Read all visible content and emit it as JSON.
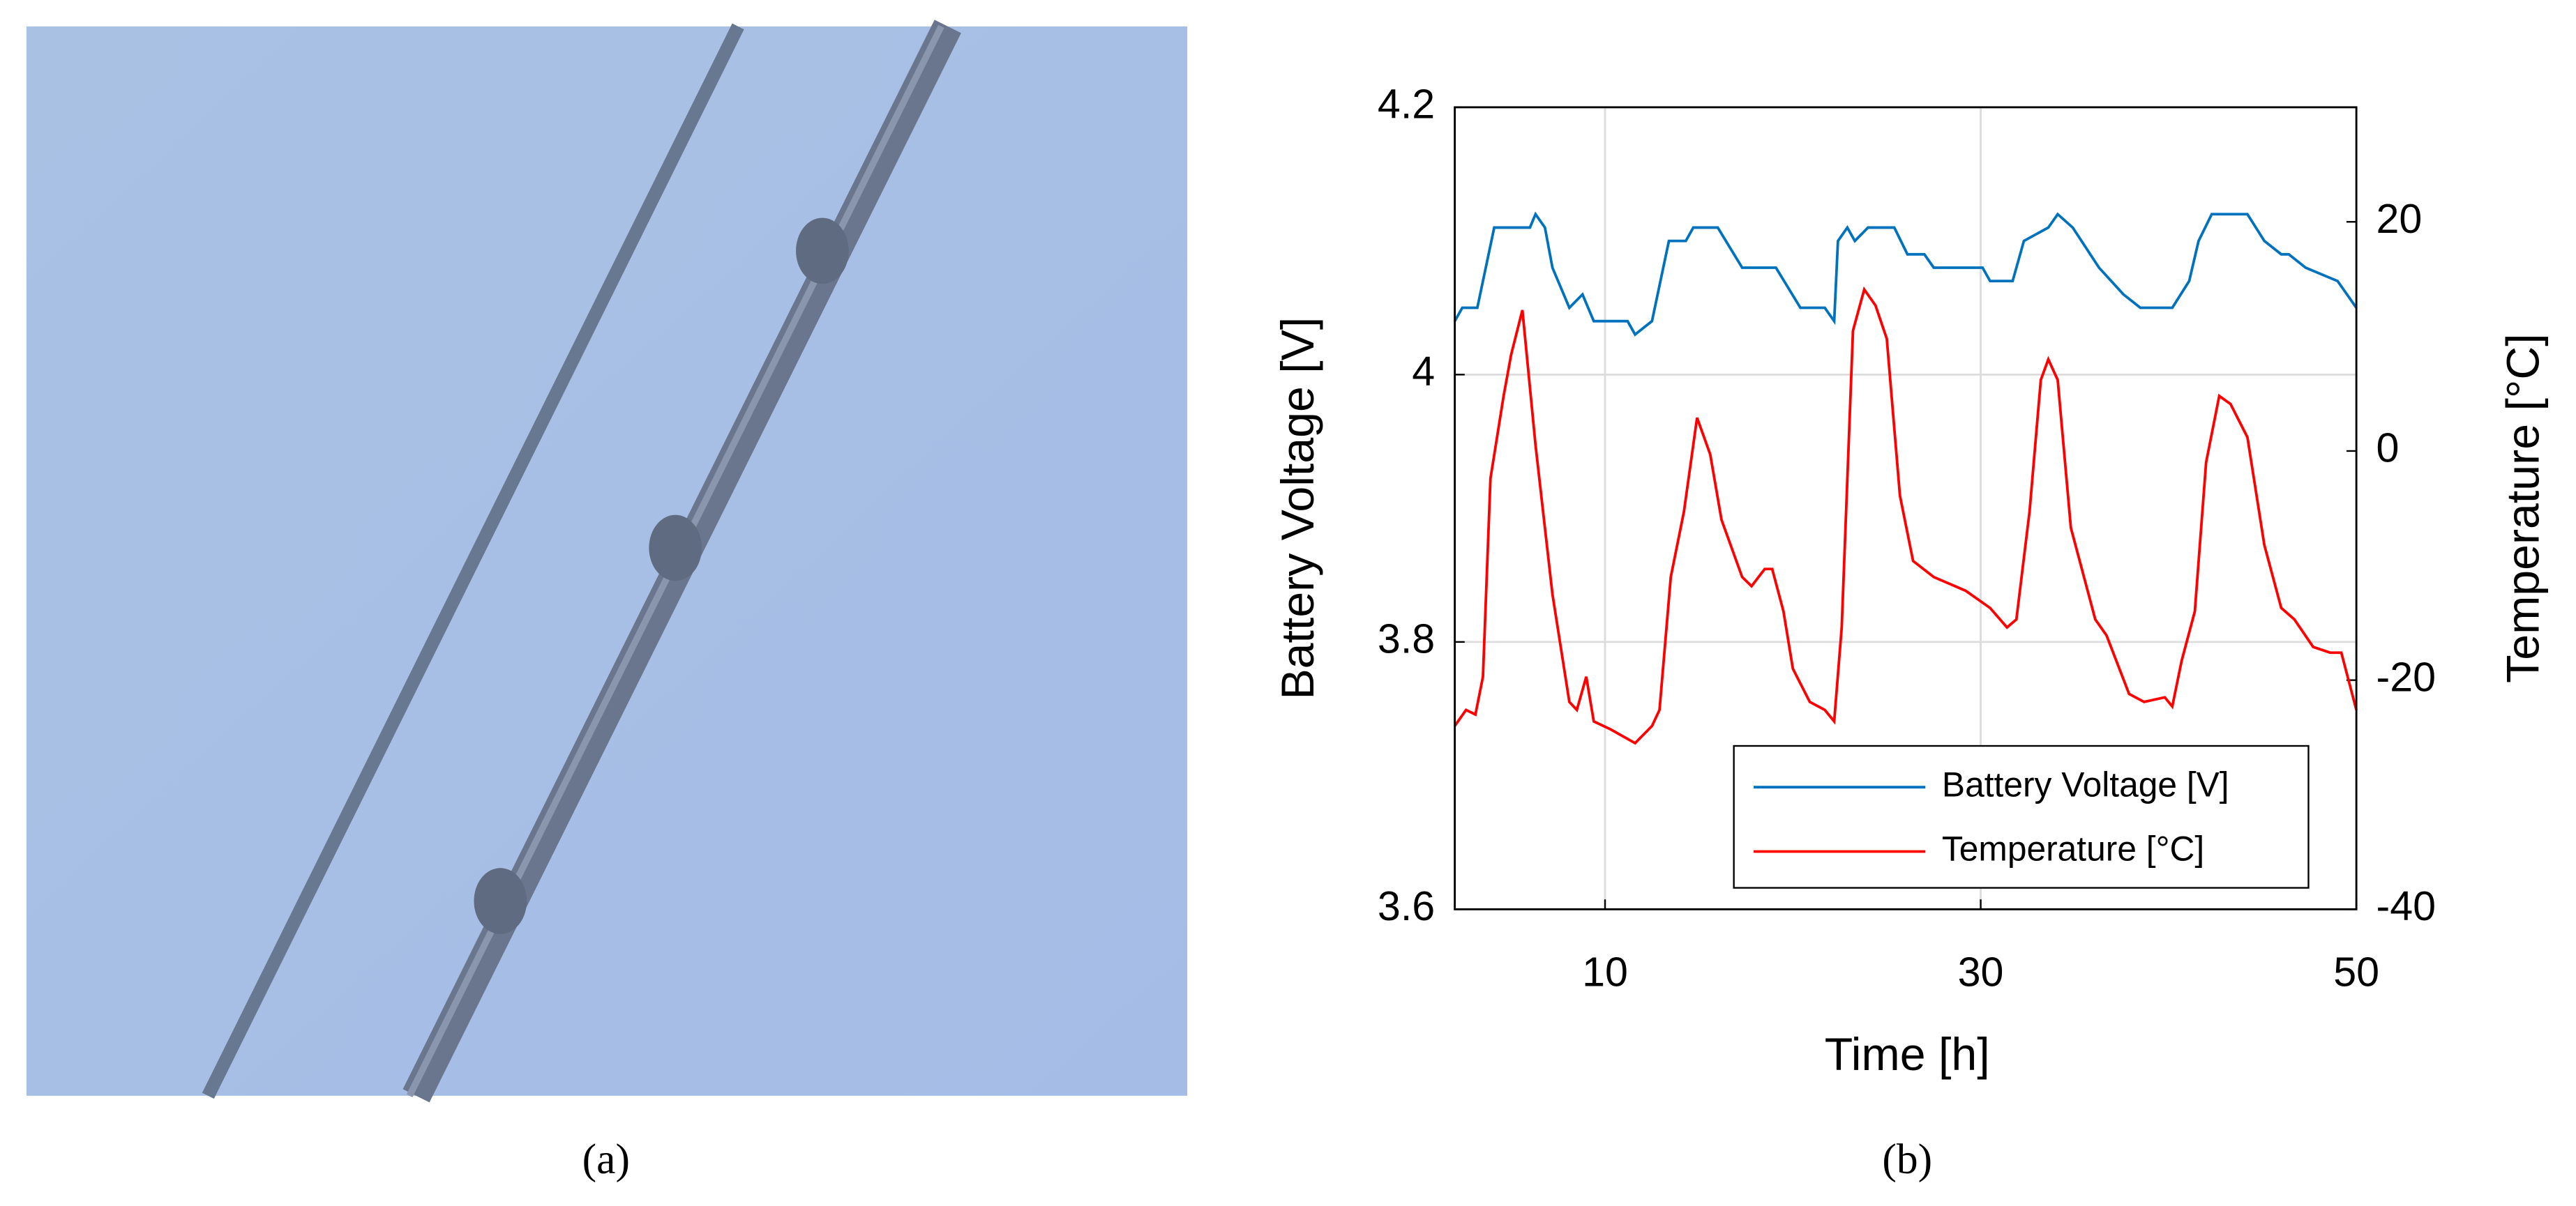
{
  "panels": [
    "(a)",
    "(b)"
  ],
  "chart_data": {
    "type": "line",
    "xlabel": "Time [h]",
    "ylabel": "Battery Voltage [V]",
    "y2label": "Temperature [°C]",
    "xlim": [
      2,
      50
    ],
    "xticks": [
      10,
      30,
      50
    ],
    "ylim": [
      3.6,
      4.2
    ],
    "yticks": [
      3.6,
      3.8,
      4,
      4.2
    ],
    "y2lim": [
      -40,
      30
    ],
    "y2ticks": [
      -40,
      -20,
      0,
      20
    ],
    "grid": true,
    "legend": "lower right",
    "series": [
      {
        "name": "Battery Voltage [V]",
        "color": "#0072bd",
        "x": [
          2.0,
          2.4,
          3.2,
          4.1,
          6.0,
          6.3,
          6.8,
          7.2,
          8.1,
          8.8,
          9.4,
          11.2,
          11.6,
          12.5,
          13.4,
          14.3,
          14.7,
          16.0,
          17.3,
          19.1,
          20.4,
          21.7,
          22.2,
          22.4,
          22.9,
          23.3,
          24.0,
          25.4,
          26.1,
          27.0,
          27.5,
          30.1,
          30.5,
          31.7,
          32.3,
          33.6,
          34.1,
          34.9,
          36.3,
          37.6,
          38.5,
          40.2,
          41.1,
          41.6,
          42.3,
          44.2,
          45.1,
          46.0,
          46.4,
          47.3,
          49.0,
          49.5,
          50.0
        ],
        "values": [
          4.04,
          4.05,
          4.05,
          4.11,
          4.11,
          4.12,
          4.11,
          4.08,
          4.05,
          4.06,
          4.04,
          4.04,
          4.03,
          4.04,
          4.1,
          4.1,
          4.11,
          4.11,
          4.08,
          4.08,
          4.05,
          4.05,
          4.04,
          4.1,
          4.11,
          4.1,
          4.11,
          4.11,
          4.09,
          4.09,
          4.08,
          4.08,
          4.07,
          4.07,
          4.1,
          4.11,
          4.12,
          4.11,
          4.08,
          4.06,
          4.05,
          4.05,
          4.07,
          4.1,
          4.12,
          4.12,
          4.1,
          4.09,
          4.09,
          4.08,
          4.07,
          4.06,
          4.05
        ]
      },
      {
        "name": "Temperature [°C]",
        "color": "#ff0000",
        "axis": "y2",
        "x": [
          2.0,
          2.6,
          3.1,
          3.5,
          3.9,
          4.6,
          5.0,
          5.6,
          6.3,
          7.2,
          8.1,
          8.5,
          9.0,
          9.4,
          10.3,
          11.6,
          12.5,
          12.9,
          13.5,
          14.2,
          14.9,
          15.6,
          16.2,
          17.3,
          17.8,
          18.5,
          18.9,
          19.5,
          20.0,
          20.9,
          21.7,
          22.2,
          22.6,
          23.2,
          23.8,
          24.4,
          25.0,
          25.7,
          26.4,
          27.5,
          29.2,
          30.5,
          31.4,
          31.9,
          32.6,
          33.2,
          33.6,
          34.1,
          34.8,
          36.1,
          36.7,
          37.9,
          38.7,
          39.8,
          40.2,
          40.7,
          41.4,
          42.0,
          42.7,
          43.3,
          44.2,
          45.1,
          46.0,
          46.7,
          47.7,
          48.6,
          49.2,
          50.0
        ],
        "values": [
          -24,
          -22.6,
          -23,
          -19.7,
          -2.4,
          4.8,
          8.4,
          12.3,
          0.5,
          -12.5,
          -21.9,
          -22.6,
          -19.7,
          -23.6,
          -24.3,
          -25.5,
          -24,
          -22.6,
          -11,
          -5.3,
          2.9,
          -0.3,
          -6,
          -11,
          -11.8,
          -10.3,
          -10.3,
          -14,
          -19,
          -21.9,
          -22.6,
          -23.6,
          -15.4,
          10.5,
          14.1,
          12.7,
          9.8,
          -3.9,
          -9.6,
          -11,
          -12.2,
          -13.7,
          -15.4,
          -14.7,
          -5.3,
          6.2,
          8,
          6.2,
          -6.7,
          -14.7,
          -16.1,
          -21.2,
          -21.9,
          -21.5,
          -22.3,
          -18.3,
          -14,
          -1,
          4.8,
          4.1,
          1.2,
          -8.2,
          -13.7,
          -14.7,
          -17.1,
          -17.6,
          -17.6,
          -22.6
        ]
      }
    ]
  }
}
